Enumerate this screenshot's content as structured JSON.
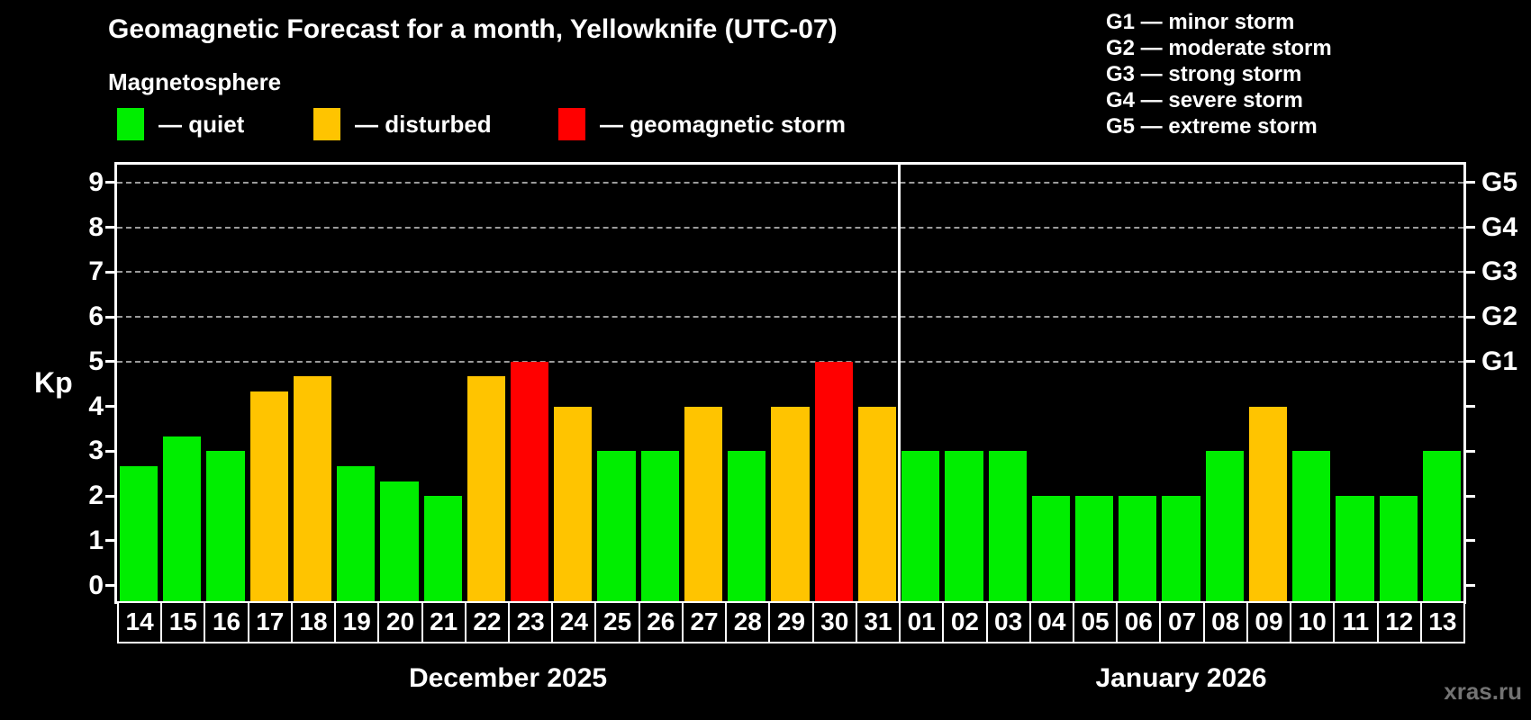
{
  "title": "Geomagnetic Forecast for a month, Yellowknife (UTC-07)",
  "subtitle": "Magnetosphere",
  "legend": {
    "items": [
      {
        "key": "quiet",
        "label": "— quiet",
        "color": "#00ee00"
      },
      {
        "key": "disturbed",
        "label": "— disturbed",
        "color": "#ffc400"
      },
      {
        "key": "storm",
        "label": "— geomagnetic storm",
        "color": "#ff0000"
      }
    ]
  },
  "g_legend": {
    "items": [
      {
        "label": "G1 — minor storm"
      },
      {
        "label": "G2 — moderate storm"
      },
      {
        "label": "G3 — strong storm"
      },
      {
        "label": "G4 — severe storm"
      },
      {
        "label": "G5 — extreme storm"
      }
    ]
  },
  "watermark": "xras.ru",
  "chart_data": {
    "type": "bar",
    "ylabel": "Kp",
    "ylim": [
      -0.35,
      9.4
    ],
    "y_ticks": [
      0,
      1,
      2,
      3,
      4,
      5,
      6,
      7,
      8,
      9
    ],
    "grid_levels": [
      5,
      6,
      7,
      8,
      9
    ],
    "right_axis_labels": [
      {
        "kp": 5,
        "label": "G1"
      },
      {
        "kp": 6,
        "label": "G2"
      },
      {
        "kp": 7,
        "label": "G3"
      },
      {
        "kp": 8,
        "label": "G4"
      },
      {
        "kp": 9,
        "label": "G5"
      }
    ],
    "months": [
      {
        "label": "December 2025",
        "days": [
          {
            "day": "14",
            "kp": 2.67,
            "status": "quiet"
          },
          {
            "day": "15",
            "kp": 3.33,
            "status": "quiet"
          },
          {
            "day": "16",
            "kp": 3.0,
            "status": "quiet"
          },
          {
            "day": "17",
            "kp": 4.33,
            "status": "disturbed"
          },
          {
            "day": "18",
            "kp": 4.67,
            "status": "disturbed"
          },
          {
            "day": "19",
            "kp": 2.67,
            "status": "quiet"
          },
          {
            "day": "20",
            "kp": 2.33,
            "status": "quiet"
          },
          {
            "day": "21",
            "kp": 2.0,
            "status": "quiet"
          },
          {
            "day": "22",
            "kp": 4.67,
            "status": "disturbed"
          },
          {
            "day": "23",
            "kp": 5.0,
            "status": "storm"
          },
          {
            "day": "24",
            "kp": 4.0,
            "status": "disturbed"
          },
          {
            "day": "25",
            "kp": 3.0,
            "status": "quiet"
          },
          {
            "day": "26",
            "kp": 3.0,
            "status": "quiet"
          },
          {
            "day": "27",
            "kp": 4.0,
            "status": "disturbed"
          },
          {
            "day": "28",
            "kp": 3.0,
            "status": "quiet"
          },
          {
            "day": "29",
            "kp": 4.0,
            "status": "disturbed"
          },
          {
            "day": "30",
            "kp": 5.0,
            "status": "storm"
          },
          {
            "day": "31",
            "kp": 4.0,
            "status": "disturbed"
          }
        ]
      },
      {
        "label": "January 2026",
        "days": [
          {
            "day": "01",
            "kp": 3.0,
            "status": "quiet"
          },
          {
            "day": "02",
            "kp": 3.0,
            "status": "quiet"
          },
          {
            "day": "03",
            "kp": 3.0,
            "status": "quiet"
          },
          {
            "day": "04",
            "kp": 2.0,
            "status": "quiet"
          },
          {
            "day": "05",
            "kp": 2.0,
            "status": "quiet"
          },
          {
            "day": "06",
            "kp": 2.0,
            "status": "quiet"
          },
          {
            "day": "07",
            "kp": 2.0,
            "status": "quiet"
          },
          {
            "day": "08",
            "kp": 3.0,
            "status": "quiet"
          },
          {
            "day": "09",
            "kp": 4.0,
            "status": "disturbed"
          },
          {
            "day": "10",
            "kp": 3.0,
            "status": "quiet"
          },
          {
            "day": "11",
            "kp": 2.0,
            "status": "quiet"
          },
          {
            "day": "12",
            "kp": 2.0,
            "status": "quiet"
          },
          {
            "day": "13",
            "kp": 3.0,
            "status": "quiet"
          }
        ]
      }
    ]
  }
}
